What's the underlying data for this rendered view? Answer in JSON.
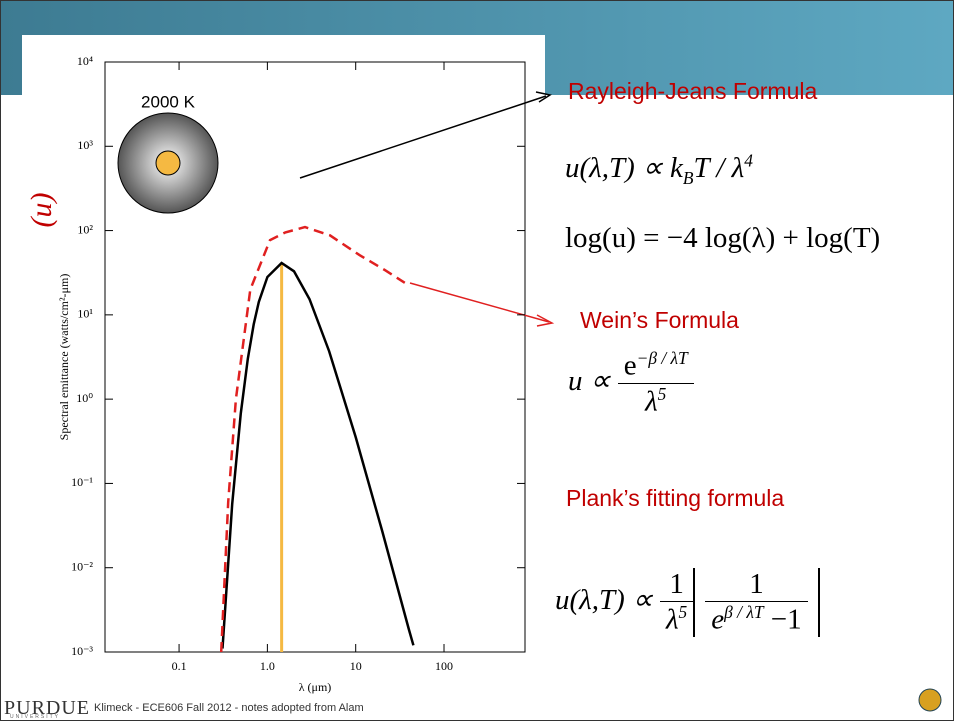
{
  "chart_data": {
    "type": "line",
    "x_label": "λ (μm)",
    "y_label": "Spectral emittance (watts/cm²-μm)",
    "y_symbol": "(u)",
    "temperature_label": "2000 K",
    "xlim": [
      0.0145,
      826
    ],
    "ylim": [
      0.001,
      10000
    ],
    "xscale": "log",
    "yscale": "log",
    "xticks": [
      0.1,
      {
        "value": 1,
        "label": "1.0"
      },
      10,
      100
    ],
    "yticks": [
      {
        "value": 0.001,
        "label": "10⁻³"
      },
      {
        "value": 0.01,
        "label": "10⁻²"
      },
      {
        "value": 0.1,
        "label": "10⁻¹"
      },
      {
        "value": 1,
        "label": "10⁰"
      },
      {
        "value": 10,
        "label": "10¹"
      },
      {
        "value": 100,
        "label": "10²"
      },
      {
        "value": 1000,
        "label": "10³"
      },
      {
        "value": 10000,
        "label": "10⁴"
      }
    ],
    "series": [
      {
        "color": "#000000",
        "style": "solid",
        "x": [
          0.31,
          0.4,
          0.5,
          0.6,
          0.7,
          0.8,
          1.0,
          1.45,
          2,
          3,
          5,
          10,
          20,
          40,
          45
        ],
        "values": [
          0.0011,
          0.057,
          0.68,
          3.0,
          7.7,
          14.2,
          28.1,
          41.2,
          32.9,
          15.4,
          3.72,
          0.355,
          0.027,
          0.00185,
          0.0012
        ]
      },
      {
        "color": "#e02020",
        "style": "dashed",
        "x": [
          0.3,
          0.36,
          0.44,
          0.64,
          1.07,
          1.6,
          2.67,
          5.1,
          11.1,
          21.4,
          36
        ],
        "values": [
          0.001,
          0.06,
          1,
          20,
          77,
          95,
          110,
          88,
          51,
          34,
          24
        ]
      }
    ],
    "peak_line": {
      "x": 1.45,
      "value": 41.2,
      "color": "#f5b942"
    }
  },
  "slide": {
    "rj_title": "Rayleigh-Jeans Formula",
    "rj_formula": {
      "lhs": "u(λ,T) ∝ k",
      "sub": "B",
      "mid": "T / λ",
      "sup": "4"
    },
    "log_formula": "log(u) = −4 log(λ) + log(T)",
    "wien_title": "Wein’s Formula",
    "wien_formula": {
      "lhs": "u ∝",
      "num": "e",
      "num_sup": "−β / λT",
      "den": "λ",
      "den_sup": "5"
    },
    "planck_title": "Plank’s fitting formula",
    "planck_formula": {
      "lhs": "u(λ,T) ∝",
      "one": "1",
      "den": "λ",
      "den_sup": "5",
      "inner_one": "1",
      "inner_den": "e",
      "inner_sup": "β / λT",
      "inner_tail": " −1"
    },
    "footer": {
      "logo": "PURDUE",
      "logo_sub": "UNIVERSITY",
      "note": "Klimeck - ECE606 Fall 2012 - notes adopted from Alam"
    }
  }
}
